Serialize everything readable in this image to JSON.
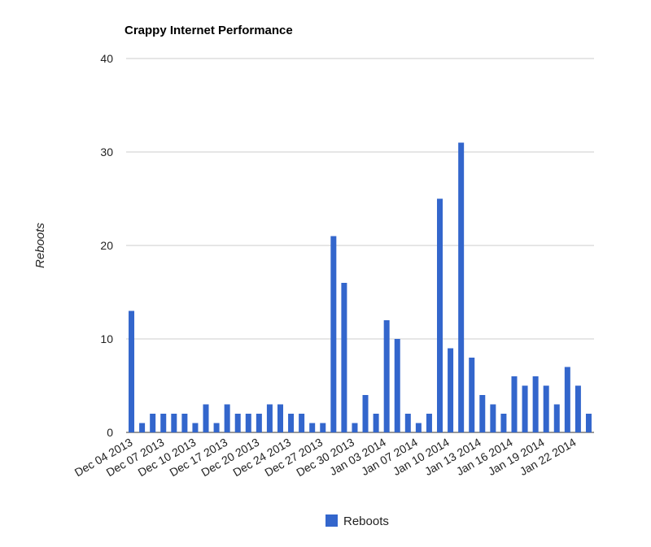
{
  "chart_data": {
    "type": "bar",
    "title": "Crappy Internet Performance",
    "xlabel": "",
    "ylabel": "Reboots",
    "ylim": [
      0,
      40
    ],
    "y_ticks": [
      0,
      10,
      20,
      30,
      40
    ],
    "grid": true,
    "legend_position": "bottom",
    "x_tick_labels": [
      "Dec 04 2013",
      "Dec 07 2013",
      "Dec 10 2013",
      "Dec 17 2013",
      "Dec 20 2013",
      "Dec 24 2013",
      "Dec 27 2013",
      "Dec 30 2013",
      "Jan 03 2014",
      "Jan 07 2014",
      "Jan 10 2014",
      "Jan 13 2014",
      "Jan 16 2014",
      "Jan 19 2014",
      "Jan 22 2014"
    ],
    "series": [
      {
        "name": "Reboots",
        "color": "#3366cc",
        "values": [
          13,
          1,
          2,
          2,
          2,
          2,
          1,
          3,
          1,
          3,
          2,
          2,
          2,
          3,
          3,
          2,
          2,
          1,
          1,
          21,
          16,
          1,
          4,
          2,
          12,
          10,
          2,
          1,
          2,
          25,
          9,
          31,
          8,
          4,
          3,
          2,
          6,
          5,
          6,
          5,
          3,
          7,
          5,
          2
        ]
      }
    ]
  }
}
